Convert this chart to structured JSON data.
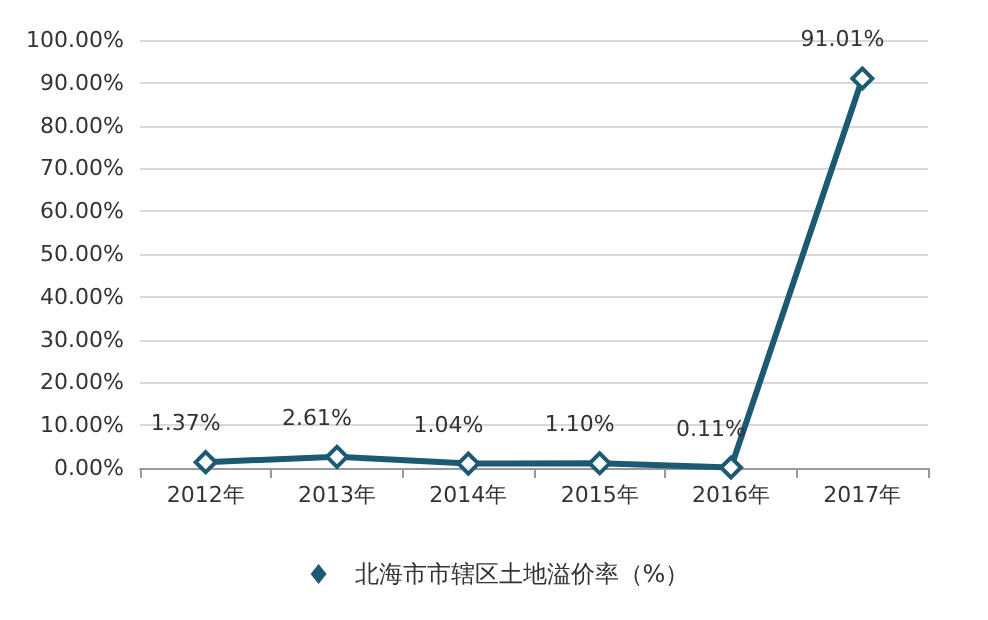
{
  "chart_data": {
    "type": "line",
    "categories": [
      "2012年",
      "2013年",
      "2014年",
      "2015年",
      "2016年",
      "2017年"
    ],
    "series": [
      {
        "name": "北海市市辖区土地溢价率（%）",
        "color": "#1c5a73",
        "values": [
          1.37,
          2.61,
          1.04,
          1.1,
          0.11,
          91.01
        ],
        "value_labels": [
          "1.37%",
          "2.61%",
          "1.04%",
          "1.10%",
          "0.11%",
          "91.01%"
        ]
      }
    ],
    "ylim": [
      0,
      100
    ],
    "yticks": [
      {
        "value": 0,
        "label": "0.00%"
      },
      {
        "value": 10,
        "label": "10.00%"
      },
      {
        "value": 20,
        "label": "20.00%"
      },
      {
        "value": 30,
        "label": "30.00%"
      },
      {
        "value": 40,
        "label": "40.00%"
      },
      {
        "value": 50,
        "label": "50.00%"
      },
      {
        "value": 60,
        "label": "60.00%"
      },
      {
        "value": 70,
        "label": "70.00%"
      },
      {
        "value": 80,
        "label": "80.00%"
      },
      {
        "value": 90,
        "label": "90.00%"
      },
      {
        "value": 100,
        "label": "100.00%"
      }
    ],
    "grid": "y",
    "legend": "bottom",
    "marker": "diamond",
    "line_style": "solid"
  }
}
